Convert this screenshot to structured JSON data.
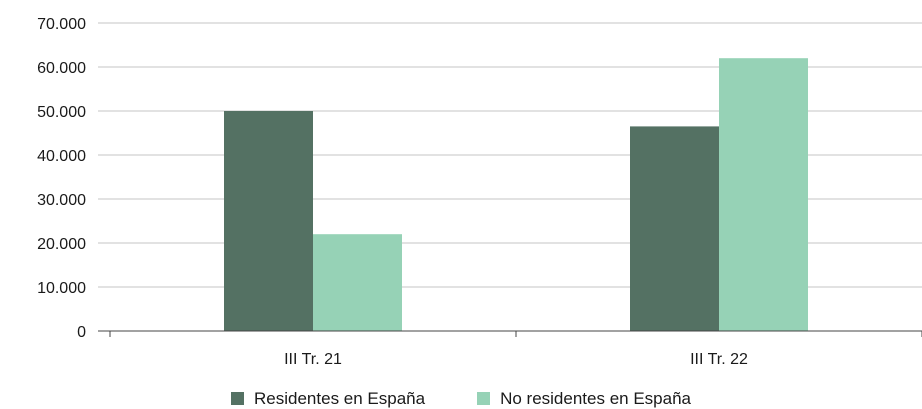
{
  "chart_data": {
    "type": "bar",
    "categories": [
      "III Tr. 21",
      "III Tr. 22"
    ],
    "series": [
      {
        "name": "Residentes en España",
        "values": [
          50000,
          46500
        ],
        "color": "#547163"
      },
      {
        "name": "No residentes en España",
        "values": [
          22000,
          62000
        ],
        "color": "#96d2b6"
      }
    ],
    "ylim": [
      0,
      70000
    ],
    "yticks": [
      0,
      10000,
      20000,
      30000,
      40000,
      50000,
      60000,
      70000
    ],
    "ytick_labels": [
      "0",
      "10.000",
      "20.000",
      "30.000",
      "40.000",
      "50.000",
      "60.000",
      "70.000"
    ],
    "grid": true,
    "legend_position": "bottom"
  }
}
